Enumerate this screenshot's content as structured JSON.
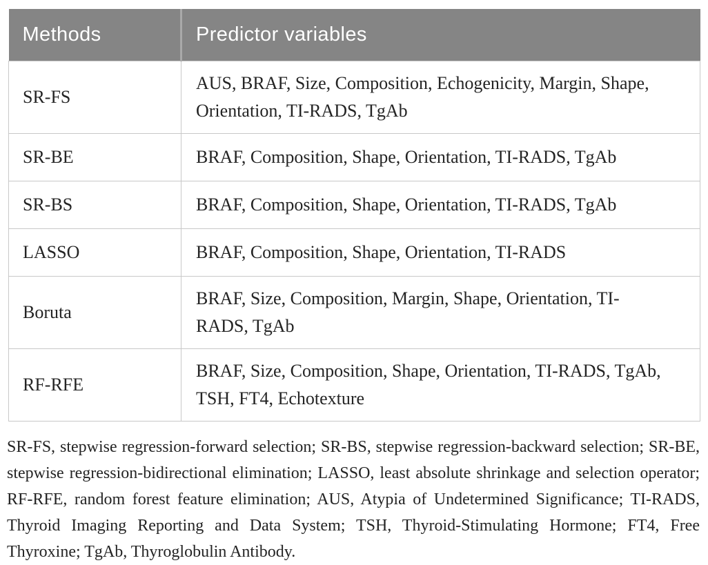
{
  "table": {
    "columns": [
      "Methods",
      "Predictor variables"
    ],
    "rows": [
      {
        "method": "SR-FS",
        "predictors": "AUS, BRAF, Size, Composition, Echogenicity, Margin, Shape, Orientation, TI-RADS, TgAb"
      },
      {
        "method": "SR-BE",
        "predictors": "BRAF, Composition, Shape, Orientation, TI-RADS, TgAb"
      },
      {
        "method": "SR-BS",
        "predictors": "BRAF, Composition, Shape, Orientation, TI-RADS, TgAb"
      },
      {
        "method": "LASSO",
        "predictors": "BRAF, Composition, Shape, Orientation, TI-RADS"
      },
      {
        "method": "Boruta",
        "predictors": "BRAF, Size, Composition, Margin, Shape, Orientation, TI-RADS, TgAb"
      },
      {
        "method": "RF-RFE",
        "predictors": "BRAF, Size, Composition, Shape, Orientation, TI-RADS, TgAb, TSH, FT4, Echotexture"
      }
    ]
  },
  "footnote": "SR-FS, stepwise regression-forward selection; SR-BS, stepwise regression-backward selection; SR-BE, stepwise regression-bidirectional elimination; LASSO, least absolute shrinkage and selection operator; RF-RFE, random forest feature elimination; AUS, Atypia of Undetermined Significance; TI-RADS, Thyroid Imaging Reporting and Data System; TSH, Thyroid-Stimulating Hormone; FT4, Free Thyroxine; TgAb, Thyroglobulin Antibody.",
  "colors": {
    "header_bg": "#858585",
    "header_text": "#ffffff",
    "header_divider": "#a9a9a9",
    "body_text": "#242424",
    "border": "#c8c8c8"
  }
}
